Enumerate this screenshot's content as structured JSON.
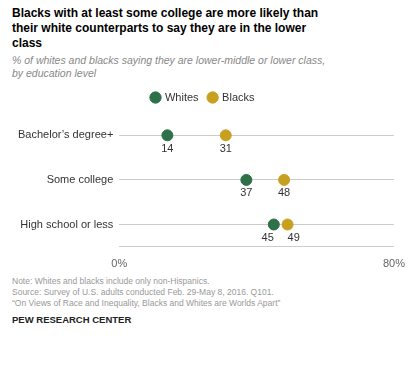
{
  "chart_data": {
    "type": "dot",
    "title": [
      "Blacks with at least some college are more likely than",
      "their white counterparts to say they are in the lower",
      "class"
    ],
    "subtitle": "% of whites and blacks saying they are lower-middle or lower class,\nby education level",
    "categories": [
      "Bachelor’s degree+",
      "Some college",
      "High school or less"
    ],
    "series": [
      {
        "name": "Whites",
        "color": "#2e7048",
        "values": [
          14,
          37,
          45
        ]
      },
      {
        "name": "Blacks",
        "color": "#c8a020",
        "values": [
          31,
          48,
          49
        ]
      }
    ],
    "xlim": [
      0,
      80
    ],
    "xticks": [
      {
        "value": 0,
        "label": "0%"
      },
      {
        "value": 80,
        "label": "80%"
      }
    ],
    "grid": true,
    "legend": "top",
    "data_labels": true,
    "annotations": [
      "Note: Whites and blacks include only non-Hispanics.\nSource: Survey of U.S. adults conducted Feb. 29-May 8, 2016. Q101.\n“On Views of Race and Inequality, Blacks and Whites are Worlds Apart”",
      "PEW RESEARCH CENTER"
    ]
  }
}
